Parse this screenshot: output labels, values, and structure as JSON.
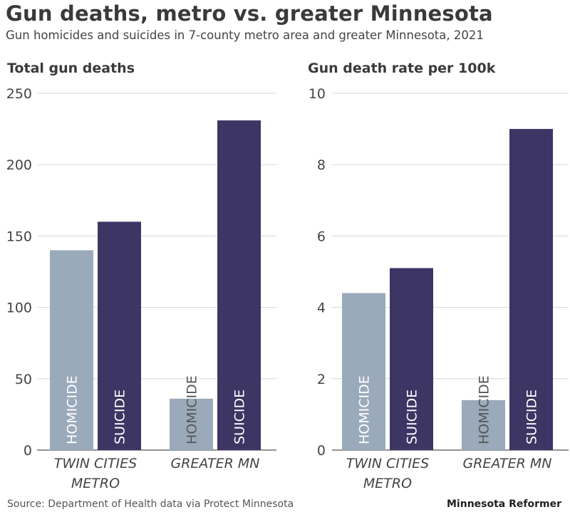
{
  "title": "Gun deaths, metro vs. greater Minnesota",
  "subtitle": "Gun homicides and suicides in 7-county metro area and greater Minnesota, 2021",
  "source": "Source: Department of Health data via Protect Minnesota",
  "brand": "Minnesota Reformer",
  "colors": {
    "homicide": "#9aaabb",
    "suicide": "#3d3564",
    "grid": "#d8d8d8",
    "axis": "#555555",
    "bar_label": "#ffffff"
  },
  "chart_data": [
    {
      "type": "bar",
      "title": "Total gun deaths",
      "categories": [
        [
          "TWIN CITIES",
          "METRO"
        ],
        [
          "GREATER MN"
        ]
      ],
      "series": [
        {
          "name": "HOMICIDE",
          "values": [
            140,
            36
          ]
        },
        {
          "name": "SUICIDE",
          "values": [
            160,
            231
          ]
        }
      ],
      "ylim": [
        0,
        250
      ],
      "yticks": [
        0,
        50,
        100,
        150,
        200,
        250
      ],
      "grid": true
    },
    {
      "type": "bar",
      "title": "Gun death rate per 100k",
      "categories": [
        [
          "TWIN CITIES",
          "METRO"
        ],
        [
          "GREATER MN"
        ]
      ],
      "series": [
        {
          "name": "HOMICIDE",
          "values": [
            4.4,
            1.4
          ]
        },
        {
          "name": "SUICIDE",
          "values": [
            5.1,
            9.0
          ]
        }
      ],
      "ylim": [
        0,
        10
      ],
      "yticks": [
        0,
        2,
        4,
        6,
        8,
        10
      ],
      "grid": true
    }
  ]
}
